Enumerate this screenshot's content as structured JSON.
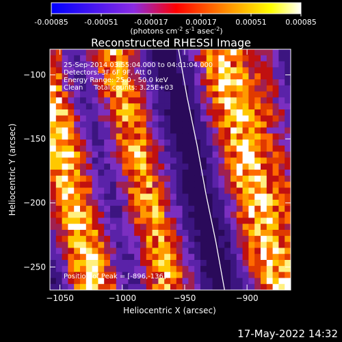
{
  "chart_data": {
    "type": "heatmap",
    "title": "Reconstructed RHESSI Image",
    "xlabel": "Heliocentric X (arcsec)",
    "ylabel": "Heliocentric Y (arcsec)",
    "xlim": [
      -1058,
      -865
    ],
    "ylim": [
      -268,
      -80
    ],
    "x_ticks": [
      -1050,
      -1000,
      -950,
      -900
    ],
    "y_ticks": [
      -100,
      -150,
      -200,
      -250
    ],
    "colorbar": {
      "range": [
        -0.00085,
        0.00085
      ],
      "ticks": [
        "-0.00085",
        "-0.00051",
        "-0.00017",
        "0.00017",
        "0.00051",
        "0.00085"
      ],
      "unit_prefix": "(photons cm",
      "unit_exp1": "-2",
      "unit_mid1": " s",
      "unit_exp2": "-1",
      "unit_mid2": " asec",
      "unit_exp3": "-2",
      "unit_suffix": ")",
      "colors": [
        "#0000ff",
        "#8a2be2",
        "#ff0000",
        "#ff8c00",
        "#ffff00",
        "#ffffff"
      ]
    },
    "annotations": {
      "time_range": "25-Sep-2014 03:55:04.000 to 04:01:04.000",
      "detectors": "Detectors: 3F 6F 9F, Att 0",
      "energy_range": "Energy Range: 25.0 - 50.0 keV",
      "clean": "Clean     Total counts: 3.25E+03",
      "peak": "Position of Peak = [-896,-136]"
    },
    "limb_x_values": [
      -955,
      -948,
      -940,
      -933,
      -925,
      -918
    ],
    "bright_bands": [
      {
        "x_center": -1045,
        "brightness": 0.95
      },
      {
        "x_center": -985,
        "brightness": 0.8
      },
      {
        "x_center": -900,
        "brightness": 0.9
      },
      {
        "x_center": -870,
        "brightness": 0.4
      }
    ]
  },
  "footer": {
    "date": "17-May-2022 14:32"
  }
}
